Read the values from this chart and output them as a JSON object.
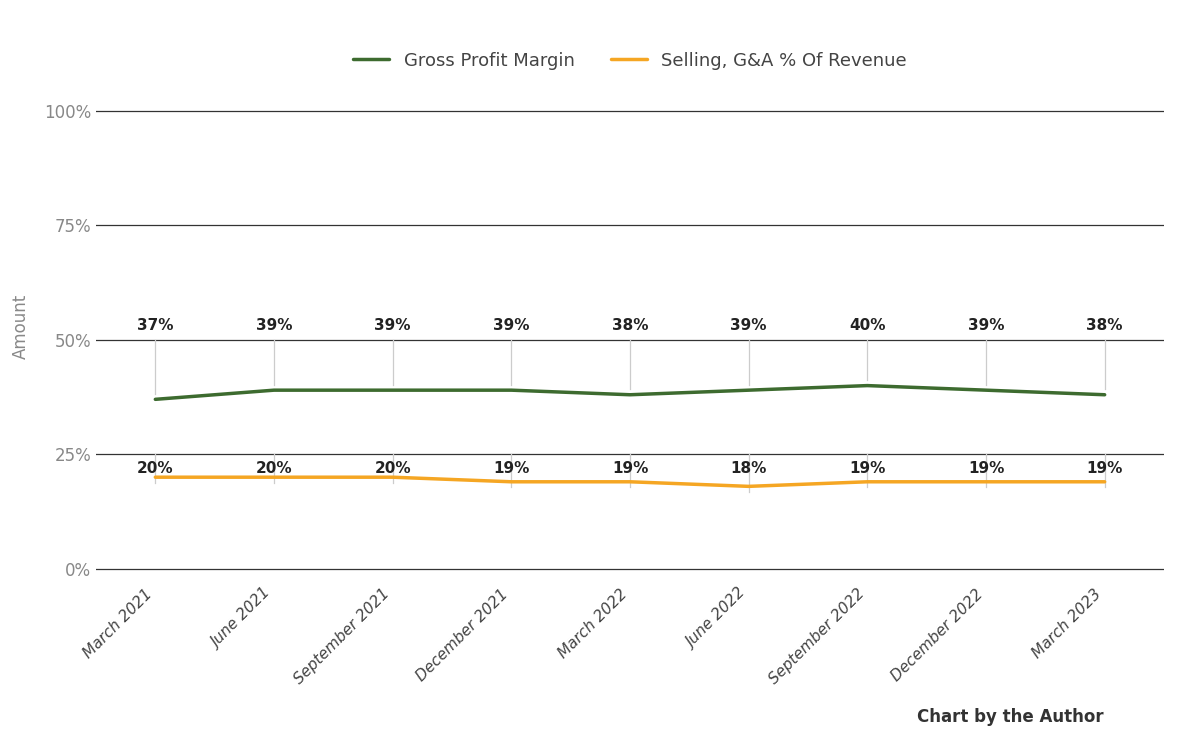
{
  "categories": [
    "March 2021",
    "June 2021",
    "September 2021",
    "December 2021",
    "March 2022",
    "June 2022",
    "September 2022",
    "December 2022",
    "March 2023"
  ],
  "gross_profit_margin": [
    0.37,
    0.39,
    0.39,
    0.39,
    0.38,
    0.39,
    0.4,
    0.39,
    0.38
  ],
  "selling_ga": [
    0.2,
    0.2,
    0.2,
    0.19,
    0.19,
    0.18,
    0.19,
    0.19,
    0.19
  ],
  "gpm_labels": [
    "37%",
    "39%",
    "39%",
    "39%",
    "38%",
    "39%",
    "40%",
    "39%",
    "38%"
  ],
  "sga_labels": [
    "20%",
    "20%",
    "20%",
    "19%",
    "19%",
    "18%",
    "19%",
    "19%",
    "19%"
  ],
  "gpm_color": "#3d6b2f",
  "sga_color": "#f5a623",
  "legend_gpm": "Gross Profit Margin",
  "legend_sga": "Selling, G&A % Of Revenue",
  "ylabel": "Amount",
  "yticks": [
    0.0,
    0.25,
    0.5,
    0.75,
    1.0
  ],
  "ytick_labels": [
    "0%",
    "25%",
    "50%",
    "75%",
    "100%"
  ],
  "ylim": [
    -0.02,
    1.08
  ],
  "background_color": "#ffffff",
  "grid_color": "#333333",
  "annotation_color": "#222222",
  "footer_text": "Chart by the Author",
  "line_width": 2.5,
  "connector_color": "#cccccc",
  "tick_label_color": "#888888"
}
